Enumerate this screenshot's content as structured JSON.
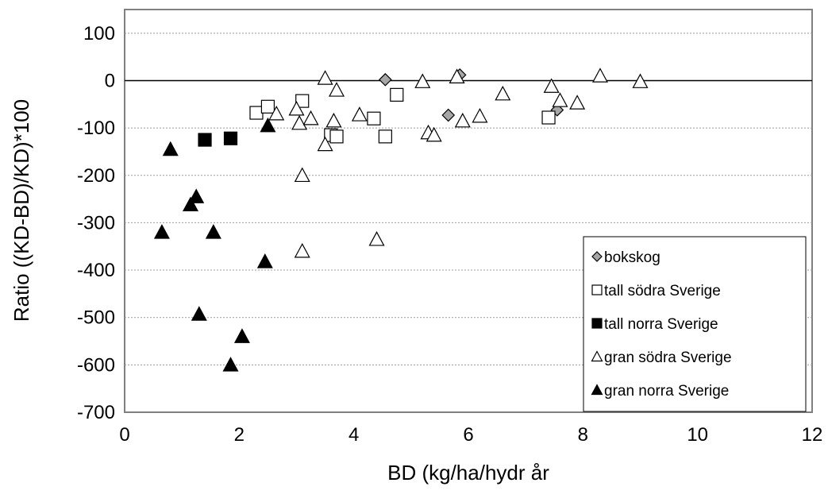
{
  "chart_data": {
    "type": "scatter",
    "title": "",
    "xlabel": "BD (kg/ha/hydr år",
    "ylabel": "Ratio ((KD-BD)/KD)*100",
    "xlim": [
      0,
      12
    ],
    "ylim": [
      -700,
      150
    ],
    "x_ticks": [
      "0",
      "2",
      "4",
      "6",
      "8",
      "10",
      "12"
    ],
    "y_ticks": [
      "100",
      "0",
      "-100",
      "-200",
      "-300",
      "-400",
      "-500",
      "-600",
      "-700"
    ],
    "grid": "horizontal dotted",
    "legend_position": "bottom-right",
    "series": [
      {
        "name": "bokskog",
        "marker": "diamond",
        "fill": "#a6a6a6",
        "points": [
          [
            4.55,
            2
          ],
          [
            5.65,
            -73
          ],
          [
            5.85,
            12
          ],
          [
            7.55,
            -62
          ]
        ]
      },
      {
        "name": "tall södra Sverige",
        "marker": "square",
        "fill": "#ffffff",
        "points": [
          [
            2.3,
            -68
          ],
          [
            2.5,
            -55
          ],
          [
            3.1,
            -43
          ],
          [
            3.6,
            -115
          ],
          [
            3.7,
            -118
          ],
          [
            4.35,
            -80
          ],
          [
            4.55,
            -118
          ],
          [
            4.75,
            -30
          ],
          [
            7.4,
            -78
          ]
        ]
      },
      {
        "name": "tall norra Sverige",
        "marker": "square",
        "fill": "#000000",
        "points": [
          [
            1.4,
            -125
          ],
          [
            1.85,
            -122
          ]
        ]
      },
      {
        "name": "gran södra Sverige",
        "marker": "triangle",
        "fill": "#ffffff",
        "points": [
          [
            2.65,
            -70
          ],
          [
            3.0,
            -60
          ],
          [
            3.05,
            -90
          ],
          [
            3.1,
            -200
          ],
          [
            3.1,
            -360
          ],
          [
            3.25,
            -80
          ],
          [
            3.5,
            5
          ],
          [
            3.5,
            -135
          ],
          [
            3.65,
            -85
          ],
          [
            3.7,
            -20
          ],
          [
            4.1,
            -72
          ],
          [
            4.4,
            -335
          ],
          [
            5.2,
            -2
          ],
          [
            5.3,
            -110
          ],
          [
            5.4,
            -115
          ],
          [
            5.8,
            8
          ],
          [
            5.9,
            -85
          ],
          [
            6.2,
            -75
          ],
          [
            6.6,
            -28
          ],
          [
            7.45,
            -12
          ],
          [
            7.6,
            -42
          ],
          [
            7.9,
            -47
          ],
          [
            8.3,
            10
          ],
          [
            9.0,
            -2
          ]
        ]
      },
      {
        "name": "gran norra Sverige",
        "marker": "triangle",
        "fill": "#000000",
        "points": [
          [
            0.65,
            -320
          ],
          [
            0.8,
            -145
          ],
          [
            1.15,
            -262
          ],
          [
            1.25,
            -245
          ],
          [
            1.3,
            -493
          ],
          [
            1.55,
            -320
          ],
          [
            1.85,
            -600
          ],
          [
            2.05,
            -540
          ],
          [
            2.45,
            -382
          ],
          [
            2.5,
            -95
          ]
        ]
      }
    ]
  }
}
